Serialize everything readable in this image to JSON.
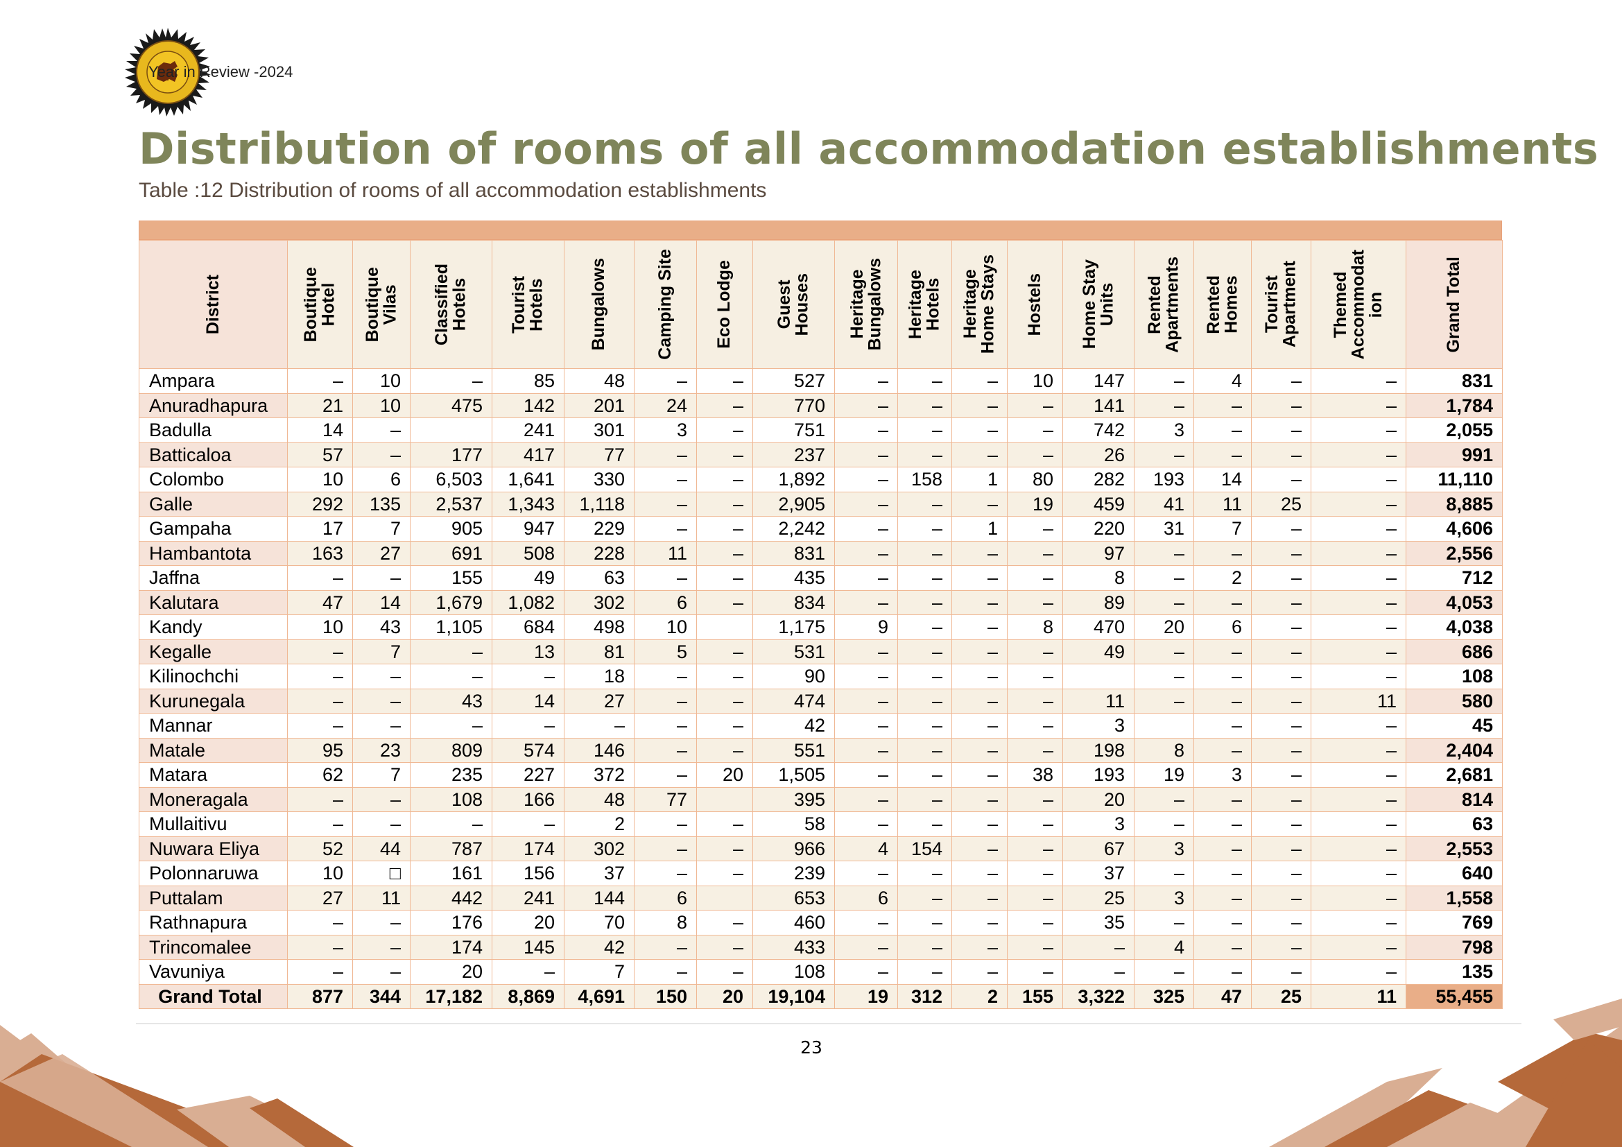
{
  "header": {
    "text": "Year in Review -2024",
    "logo_text": "SRI LANKA TOURISM DEVELOPMENT AUTHORITY"
  },
  "title": "Distribution of rooms of all accommodation establishments",
  "caption": "Table :12 Distribution of rooms of all accommodation establishments",
  "table": {
    "columns": [
      "District",
      "Boutique\nHotel",
      "Boutique\nVilas",
      "Classified\nHotels",
      "Tourist\nHotels",
      "Bungalows",
      "Camping Site",
      "Eco Lodge",
      "Guest\nHouses",
      "Heritage\nBungalows",
      "Heritage\nHotels",
      "Heritage\nHome Stays",
      "Hostels",
      "Home Stay\nUnits",
      "Rented\nApartments",
      "Rented\nHomes",
      "Tourist\nApartment",
      "Themed\nAccommodat\nion",
      "Grand Total"
    ],
    "rows": [
      [
        "Ampara",
        "–",
        "10",
        "–",
        "85",
        "48",
        "–",
        "–",
        "527",
        "–",
        "–",
        "–",
        "10",
        "147",
        "–",
        "4",
        "–",
        "–",
        "831"
      ],
      [
        "Anuradhapura",
        "21",
        "10",
        "475",
        "142",
        "201",
        "24",
        "–",
        "770",
        "–",
        "–",
        "–",
        "–",
        "141",
        "–",
        "–",
        "–",
        "–",
        "1,784"
      ],
      [
        "Badulla",
        "14",
        "–",
        "",
        "241",
        "301",
        "3",
        "–",
        "751",
        "–",
        "–",
        "–",
        "–",
        "742",
        "3",
        "–",
        "–",
        "–",
        "2,055"
      ],
      [
        "Batticaloa",
        "57",
        "–",
        "177",
        "417",
        "77",
        "–",
        "–",
        "237",
        "–",
        "–",
        "–",
        "–",
        "26",
        "–",
        "–",
        "–",
        "–",
        "991"
      ],
      [
        "Colombo",
        "10",
        "6",
        "6,503",
        "1,641",
        "330",
        "–",
        "–",
        "1,892",
        "–",
        "158",
        "1",
        "80",
        "282",
        "193",
        "14",
        "–",
        "–",
        "11,110"
      ],
      [
        "Galle",
        "292",
        "135",
        "2,537",
        "1,343",
        "1,118",
        "–",
        "–",
        "2,905",
        "–",
        "–",
        "–",
        "19",
        "459",
        "41",
        "11",
        "25",
        "–",
        "8,885"
      ],
      [
        "Gampaha",
        "17",
        "7",
        "905",
        "947",
        "229",
        "–",
        "–",
        "2,242",
        "–",
        "–",
        "1",
        "–",
        "220",
        "31",
        "7",
        "–",
        "–",
        "4,606"
      ],
      [
        "Hambantota",
        "163",
        "27",
        "691",
        "508",
        "228",
        "11",
        "–",
        "831",
        "–",
        "–",
        "–",
        "–",
        "97",
        "–",
        "–",
        "–",
        "–",
        "2,556"
      ],
      [
        "Jaffna",
        "–",
        "–",
        "155",
        "49",
        "63",
        "–",
        "–",
        "435",
        "–",
        "–",
        "–",
        "–",
        "8",
        "–",
        "2",
        "–",
        "–",
        "712"
      ],
      [
        "Kalutara",
        "47",
        "14",
        "1,679",
        "1,082",
        "302",
        "6",
        "–",
        "834",
        "–",
        "–",
        "–",
        "–",
        "89",
        "–",
        "–",
        "–",
        "–",
        "4,053"
      ],
      [
        "Kandy",
        "10",
        "43",
        "1,105",
        "684",
        "498",
        "10",
        "",
        "1,175",
        "9",
        "–",
        "–",
        "8",
        "470",
        "20",
        "6",
        "–",
        "–",
        "4,038"
      ],
      [
        "Kegalle",
        "–",
        "7",
        "–",
        "13",
        "81",
        "5",
        "–",
        "531",
        "–",
        "–",
        "–",
        "–",
        "49",
        "–",
        "–",
        "–",
        "–",
        "686"
      ],
      [
        "Kilinochchi",
        "–",
        "–",
        "–",
        "–",
        "18",
        "–",
        "–",
        "90",
        "–",
        "–",
        "–",
        "–",
        "",
        "–",
        "–",
        "–",
        "–",
        "108"
      ],
      [
        "Kurunegala",
        "–",
        "–",
        "43",
        "14",
        "27",
        "–",
        "–",
        "474",
        "–",
        "–",
        "–",
        "–",
        "11",
        "–",
        "–",
        "–",
        "11",
        "580"
      ],
      [
        "Mannar",
        "–",
        "–",
        "–",
        "–",
        "–",
        "–",
        "–",
        "42",
        "–",
        "–",
        "–",
        "–",
        "3",
        "",
        "–",
        "–",
        "–",
        "45"
      ],
      [
        "Matale",
        "95",
        "23",
        "809",
        "574",
        "146",
        "–",
        "–",
        "551",
        "–",
        "–",
        "–",
        "–",
        "198",
        "8",
        "–",
        "–",
        "–",
        "2,404"
      ],
      [
        "Matara",
        "62",
        "7",
        "235",
        "227",
        "372",
        "–",
        "20",
        "1,505",
        "–",
        "–",
        "–",
        "38",
        "193",
        "19",
        "3",
        "–",
        "–",
        "2,681"
      ],
      [
        "Moneragala",
        "–",
        "–",
        "108",
        "166",
        "48",
        "77",
        "",
        "395",
        "–",
        "–",
        "–",
        "–",
        "20",
        "–",
        "–",
        "–",
        "–",
        "814"
      ],
      [
        "Mullaitivu",
        "–",
        "–",
        "–",
        "–",
        "2",
        "–",
        "–",
        "58",
        "–",
        "–",
        "–",
        "–",
        "3",
        "–",
        "–",
        "–",
        "–",
        "63"
      ],
      [
        "Nuwara Eliya",
        "52",
        "44",
        "787",
        "174",
        "302",
        "–",
        "–",
        "966",
        "4",
        "154",
        "–",
        "–",
        "67",
        "3",
        "–",
        "–",
        "–",
        "2,553"
      ],
      [
        "Polonnaruwa",
        "10",
        "□",
        "161",
        "156",
        "37",
        "–",
        "–",
        "239",
        "–",
        "–",
        "–",
        "–",
        "37",
        "–",
        "–",
        "–",
        "–",
        "640"
      ],
      [
        "Puttalam",
        "27",
        "11",
        "442",
        "241",
        "144",
        "6",
        "",
        "653",
        "6",
        "–",
        "–",
        "–",
        "25",
        "3",
        "–",
        "–",
        "–",
        "1,558"
      ],
      [
        "Rathnapura",
        "–",
        "–",
        "176",
        "20",
        "70",
        "8",
        "–",
        "460",
        "–",
        "–",
        "–",
        "–",
        "35",
        "–",
        "–",
        "–",
        "–",
        "769"
      ],
      [
        "Trincomalee",
        "–",
        "–",
        "174",
        "145",
        "42",
        "–",
        "–",
        "433",
        "–",
        "–",
        "–",
        "–",
        "–",
        "4",
        "–",
        "–",
        "–",
        "798"
      ],
      [
        "Vavuniya",
        "–",
        "–",
        "20",
        "–",
        "7",
        "–",
        "–",
        "108",
        "–",
        "–",
        "–",
        "–",
        "–",
        "–",
        "–",
        "–",
        "–",
        "135"
      ]
    ],
    "total": [
      "Grand Total",
      "877",
      "344",
      "17,182",
      "8,869",
      "4,691",
      "150",
      "20",
      "19,104",
      "19",
      "312",
      "2",
      "155",
      "3,322",
      "325",
      "47",
      "25",
      "11",
      "55,455"
    ]
  },
  "page_number": "23",
  "colors": {
    "title": "#7f855a",
    "header_band": "#e9ae88",
    "header_cell": "#f6e3d9",
    "row_alt": "#f7f0e3",
    "border": "#f0b894",
    "decor_dark": "#b5693a",
    "decor_light": "#d9ae93"
  }
}
